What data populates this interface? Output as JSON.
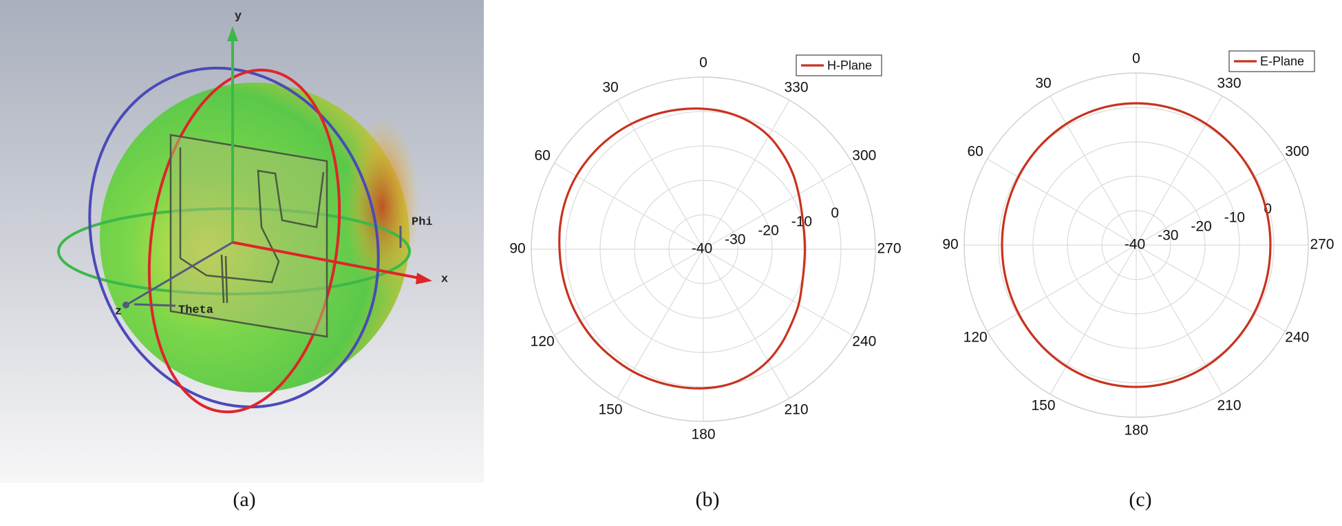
{
  "panel_a": {
    "axis_labels": {
      "y": "y",
      "x": "x",
      "z": "z",
      "phi": "Phi",
      "theta": "Theta"
    },
    "caption": "(a)"
  },
  "chart_data": [
    {
      "type": "polar",
      "caption": "(b)",
      "theta_direction": "counterclockwise",
      "theta": [
        0,
        10,
        20,
        30,
        40,
        50,
        60,
        70,
        80,
        90,
        100,
        110,
        120,
        130,
        140,
        150,
        160,
        170,
        180,
        190,
        200,
        210,
        220,
        230,
        240,
        250,
        260,
        270,
        280,
        290,
        300,
        310,
        320,
        330,
        340,
        350
      ],
      "series": [
        {
          "name": "H-Plane",
          "color": "#c8321f",
          "values": [
            0.8,
            1.2,
            1.6,
            2,
            2.3,
            2.5,
            2.6,
            2.5,
            2.2,
            1.8,
            1.6,
            1.5,
            1.4,
            1.3,
            1.1,
            1,
            0.8,
            0.6,
            0.4,
            0,
            -1,
            -2.5,
            -4.5,
            -6.5,
            -8,
            -9.5,
            -10.3,
            -10.5,
            -10.3,
            -9.5,
            -8,
            -6,
            -4,
            -2,
            -0.6,
            0.3
          ]
        }
      ],
      "rlim": [
        -40,
        10
      ],
      "rticks": [
        -40,
        -30,
        -20,
        -10,
        0
      ],
      "thetaticks": [
        0,
        30,
        60,
        90,
        120,
        150,
        180,
        210,
        240,
        270,
        300,
        330
      ],
      "grid": true,
      "legend": "upper right"
    },
    {
      "type": "polar",
      "caption": "(c)",
      "theta_direction": "counterclockwise",
      "theta": [
        0,
        10,
        20,
        30,
        40,
        50,
        60,
        70,
        80,
        90,
        100,
        110,
        120,
        130,
        140,
        150,
        160,
        170,
        180,
        190,
        200,
        210,
        220,
        230,
        240,
        250,
        260,
        270,
        280,
        290,
        300,
        310,
        320,
        330,
        340,
        350
      ],
      "series": [
        {
          "name": "E-Plane",
          "color": "#c8321f",
          "values": [
            1.2,
            1.13,
            0.94,
            0.65,
            0.29,
            -0.09,
            -0.45,
            -0.74,
            -0.93,
            -1,
            -0.93,
            -0.74,
            -0.45,
            -0.09,
            0.29,
            0.65,
            0.94,
            1.13,
            1.2,
            1.13,
            0.94,
            0.65,
            0.29,
            -0.09,
            -0.45,
            -0.74,
            -0.93,
            -1,
            -0.93,
            -0.74,
            -0.45,
            -0.09,
            0.29,
            0.65,
            0.94,
            1.13
          ]
        }
      ],
      "rlim": [
        -40,
        10
      ],
      "rticks": [
        -40,
        -30,
        -20,
        -10,
        0
      ],
      "thetaticks": [
        0,
        30,
        60,
        90,
        120,
        150,
        180,
        210,
        240,
        270,
        300,
        330
      ],
      "grid": true,
      "legend": "upper right"
    }
  ]
}
